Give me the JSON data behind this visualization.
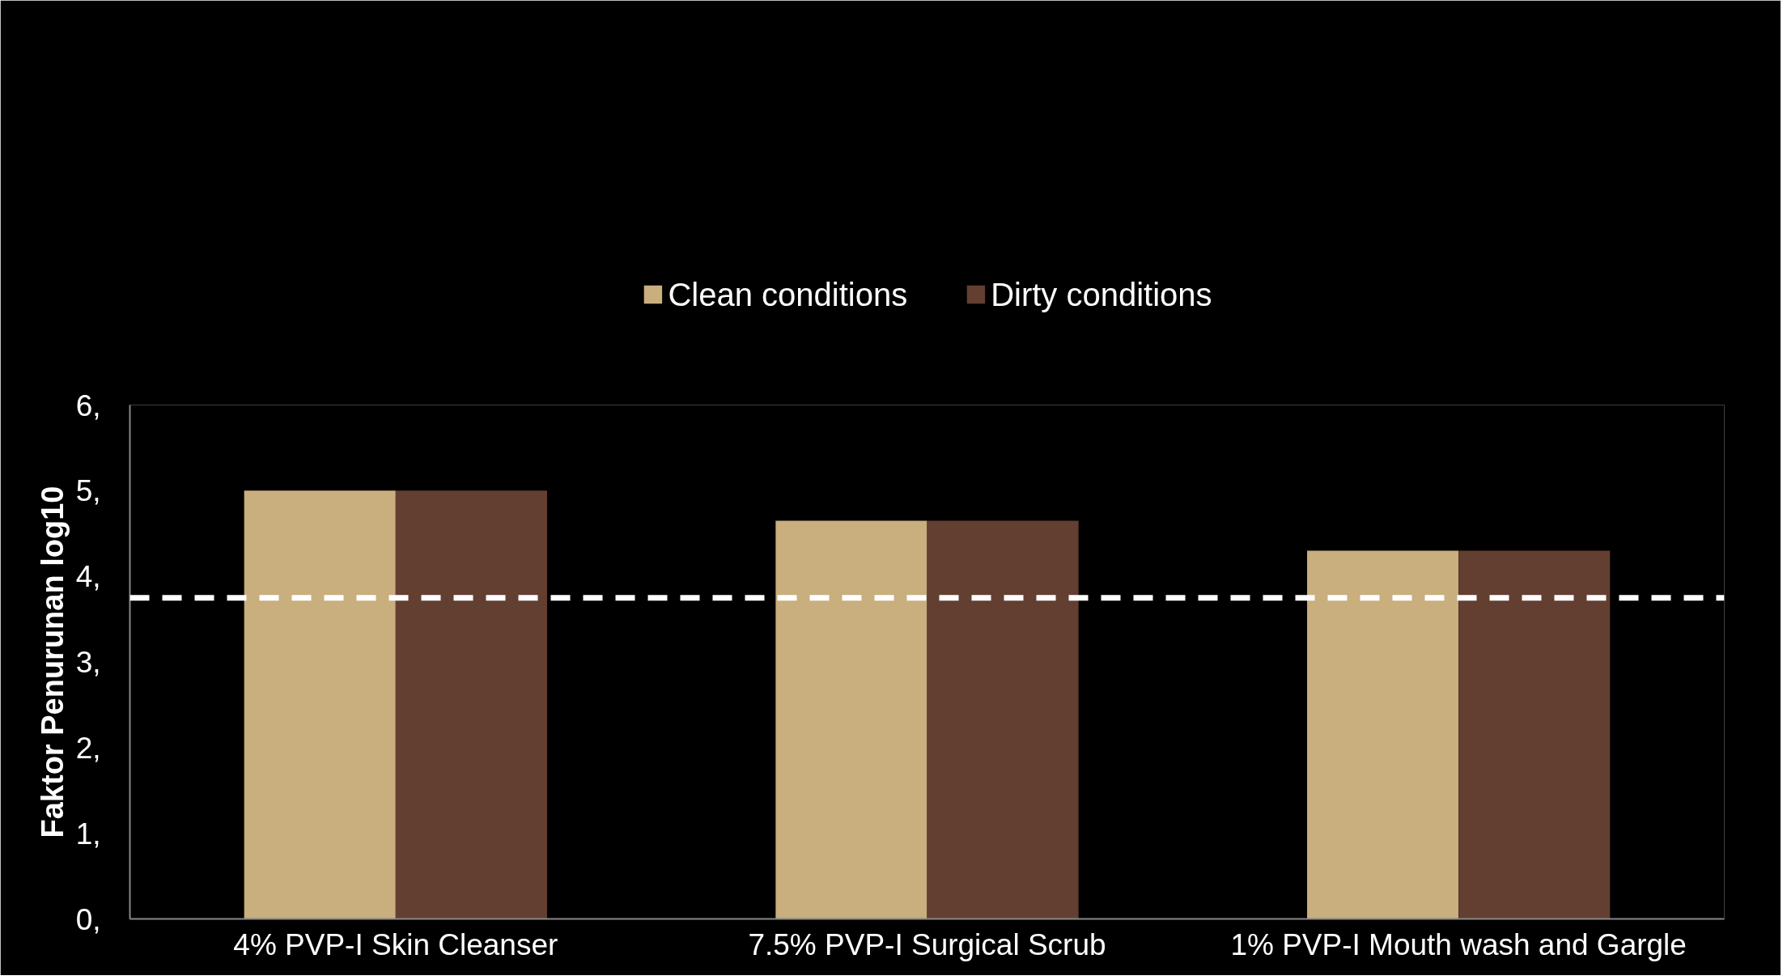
{
  "chart_data": {
    "type": "bar",
    "ylabel": "Faktor Penurunan log10",
    "categories": [
      "4% PVP-I Skin Cleanser",
      "7.5% PVP-I Surgical Scrub",
      "1% PVP-I Mouth wash and Gargle"
    ],
    "series": [
      {
        "name": "Clean conditions",
        "color": "#c9ae7e",
        "values": [
          5.0,
          4.65,
          4.3
        ]
      },
      {
        "name": "Dirty conditions",
        "color": "#633f31",
        "values": [
          5.0,
          4.65,
          4.3
        ]
      }
    ],
    "ylim": [
      0,
      6
    ],
    "yticks": [
      {
        "value": 0,
        "label": "0,"
      },
      {
        "value": 1,
        "label": "1,"
      },
      {
        "value": 2,
        "label": "2,"
      },
      {
        "value": 3,
        "label": "3,"
      },
      {
        "value": 4,
        "label": "4,"
      },
      {
        "value": 5,
        "label": "5,"
      },
      {
        "value": 6,
        "label": "6,"
      }
    ],
    "ref_lines": [
      {
        "axis": "y",
        "value": 3.75,
        "color": "#ffffff",
        "line_style": "dashed"
      }
    ],
    "grid": false,
    "legend": "top"
  }
}
